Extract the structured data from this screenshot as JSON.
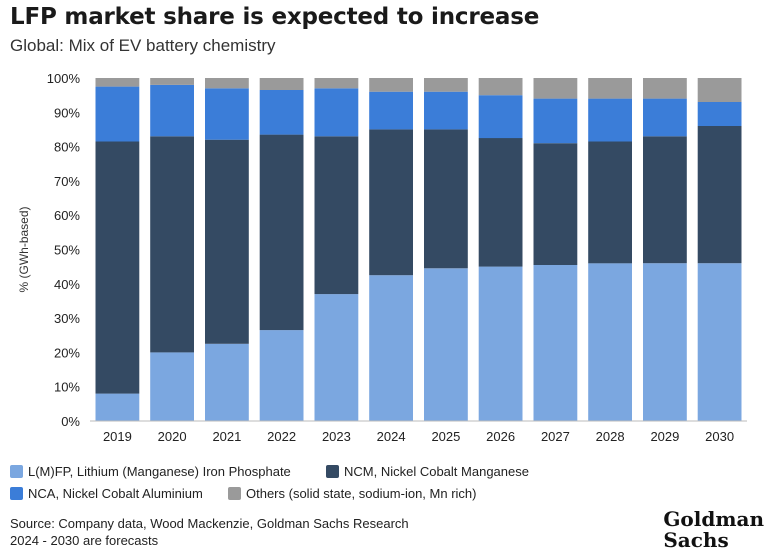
{
  "header": {
    "title": "LFP market share is expected to increase",
    "subtitle": "Global: Mix of EV battery chemistry"
  },
  "chart_data": {
    "type": "bar",
    "stacked": true,
    "categories": [
      "2019",
      "2020",
      "2021",
      "2022",
      "2023",
      "2024",
      "2025",
      "2026",
      "2027",
      "2028",
      "2029",
      "2030"
    ],
    "series": [
      {
        "name": "L(M)FP, Lithium (Manganese) Iron Phosphate",
        "color": "#7ba7e0",
        "values": [
          8,
          20,
          22.5,
          26.5,
          37,
          42.5,
          44.5,
          45,
          45.5,
          46,
          46,
          46
        ]
      },
      {
        "name": "NCM, Nickel Cobalt Manganese",
        "color": "#344a63",
        "values": [
          73.5,
          63,
          59.5,
          57,
          46,
          42.5,
          40.5,
          37.5,
          35.5,
          35.5,
          37,
          40
        ]
      },
      {
        "name": "NCA, Nickel Cobalt Aluminium",
        "color": "#3b7dd8",
        "values": [
          16,
          15,
          15,
          13,
          14,
          11,
          11,
          12.5,
          13,
          12.5,
          11,
          7
        ]
      },
      {
        "name": "Others (solid state, sodium-ion, Mn rich)",
        "color": "#9a9a9a",
        "values": [
          2.5,
          2,
          3,
          3.5,
          3,
          4,
          4,
          5,
          6,
          6,
          6,
          7
        ]
      }
    ],
    "ylabel": "% (GWh-based)",
    "ylim": [
      0,
      100
    ],
    "yticks": [
      "0%",
      "10%",
      "20%",
      "30%",
      "40%",
      "50%",
      "60%",
      "70%",
      "80%",
      "90%",
      "100%"
    ],
    "grid": false,
    "legend": "bottom"
  },
  "footer": {
    "source": "Source: Company data, Wood Mackenzie, Goldman Sachs Research",
    "note": "2024 - 2030 are forecasts",
    "logo_line1": "Goldman",
    "logo_line2": "Sachs"
  }
}
